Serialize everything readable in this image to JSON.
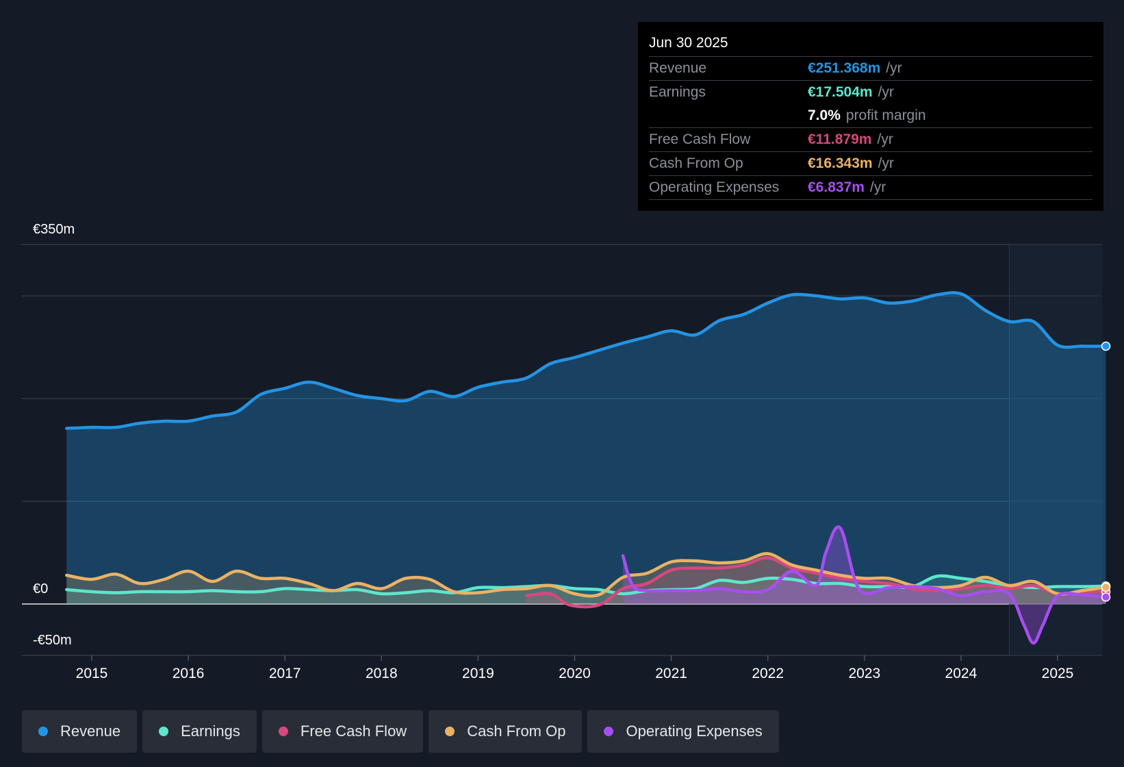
{
  "tooltip": {
    "date": "Jun 30 2025",
    "rows": [
      {
        "label": "Revenue",
        "value": "€251.368m",
        "unit": "/yr",
        "color": "#2394e4"
      },
      {
        "label": "Earnings",
        "value": "€17.504m",
        "unit": "/yr",
        "color": "#5ee6cc"
      },
      {
        "label": "",
        "value": "7.0%",
        "unit": "profit margin",
        "color": "#ffffff"
      },
      {
        "label": "Free Cash Flow",
        "value": "€11.879m",
        "unit": "/yr",
        "color": "#d6487e"
      },
      {
        "label": "Cash From Op",
        "value": "€16.343m",
        "unit": "/yr",
        "color": "#ebb264"
      },
      {
        "label": "Operating Expenses",
        "value": "€6.837m",
        "unit": "/yr",
        "color": "#a64ff0"
      }
    ]
  },
  "legend": [
    {
      "label": "Revenue",
      "color": "#2394e4"
    },
    {
      "label": "Earnings",
      "color": "#5ee6cc"
    },
    {
      "label": "Free Cash Flow",
      "color": "#d6487e"
    },
    {
      "label": "Cash From Op",
      "color": "#ebb264"
    },
    {
      "label": "Operating Expenses",
      "color": "#a64ff0"
    }
  ],
  "chart_data": {
    "type": "line",
    "title": "",
    "xlabel": "",
    "ylabel": "",
    "ylim": [
      -50,
      350
    ],
    "xlim": [
      2014.74,
      2025.5
    ],
    "y_tick_labels": [
      {
        "value": 350,
        "label": "€350m"
      },
      {
        "value": 0,
        "label": "€0"
      },
      {
        "value": -50,
        "label": "-€50m"
      }
    ],
    "gridlines": [
      350,
      300,
      200,
      100,
      0,
      -50
    ],
    "x_ticks": [
      2015,
      2016,
      2017,
      2018,
      2019,
      2020,
      2021,
      2022,
      2023,
      2024,
      2025
    ],
    "x_tick_labels": [
      "2015",
      "2016",
      "2017",
      "2018",
      "2019",
      "2020",
      "2021",
      "2022",
      "2023",
      "2024",
      "2025"
    ],
    "forecast_start": 2024.5,
    "colors": {
      "Revenue": "#2394e4",
      "Earnings": "#5ee6cc",
      "Free Cash Flow": "#d6487e",
      "Cash From Op": "#ebb264",
      "Operating Expenses": "#a64ff0"
    },
    "series": [
      {
        "name": "Revenue",
        "x": [
          2014.74,
          2015.0,
          2015.25,
          2015.5,
          2015.75,
          2016.0,
          2016.25,
          2016.5,
          2016.75,
          2017.0,
          2017.25,
          2017.5,
          2017.75,
          2018.0,
          2018.25,
          2018.5,
          2018.75,
          2019.0,
          2019.25,
          2019.5,
          2019.75,
          2020.0,
          2020.25,
          2020.5,
          2020.75,
          2021.0,
          2021.25,
          2021.5,
          2021.75,
          2022.0,
          2022.25,
          2022.5,
          2022.75,
          2023.0,
          2023.25,
          2023.5,
          2023.75,
          2024.0,
          2024.25,
          2024.5,
          2024.75,
          2025.0,
          2025.25,
          2025.5
        ],
        "values": [
          171,
          172,
          172,
          176,
          178,
          178,
          183,
          187,
          204,
          210,
          216,
          210,
          203,
          200,
          198,
          207,
          202,
          211,
          216,
          220,
          234,
          240,
          247,
          254,
          260,
          266,
          262,
          276,
          282,
          293,
          301,
          300,
          297,
          298,
          293,
          295,
          301,
          302,
          286,
          275,
          275,
          252,
          251,
          251
        ]
      },
      {
        "name": "Earnings",
        "x": [
          2014.74,
          2015.0,
          2015.25,
          2015.5,
          2015.75,
          2016.0,
          2016.25,
          2016.5,
          2016.75,
          2017.0,
          2017.25,
          2017.5,
          2017.75,
          2018.0,
          2018.25,
          2018.5,
          2018.75,
          2019.0,
          2019.25,
          2019.5,
          2019.75,
          2020.0,
          2020.25,
          2020.5,
          2020.75,
          2021.0,
          2021.25,
          2021.5,
          2021.75,
          2022.0,
          2022.25,
          2022.5,
          2022.75,
          2023.0,
          2023.25,
          2023.5,
          2023.75,
          2024.0,
          2024.25,
          2024.5,
          2024.75,
          2025.0,
          2025.25,
          2025.5
        ],
        "values": [
          14,
          12,
          11,
          12,
          12,
          12,
          13,
          12,
          12,
          15,
          14,
          13,
          14,
          10,
          11,
          13,
          11,
          16,
          16,
          17,
          18,
          15,
          14,
          10,
          13,
          14,
          15,
          23,
          21,
          25,
          24,
          20,
          20,
          17,
          17,
          17,
          27,
          25,
          22,
          18,
          16,
          17,
          17,
          17.5
        ]
      },
      {
        "name": "Free Cash Flow",
        "x": [
          2019.5,
          2019.75,
          2019.95,
          2020.25,
          2020.5,
          2020.75,
          2021.0,
          2021.25,
          2021.5,
          2021.75,
          2022.0,
          2022.25,
          2022.5,
          2022.75,
          2023.0,
          2023.25,
          2023.5,
          2023.75,
          2024.0,
          2024.25,
          2024.5,
          2024.75,
          2025.0,
          2025.25,
          2025.5
        ],
        "values": [
          8,
          10,
          -1,
          -1,
          15,
          20,
          33,
          35,
          35,
          38,
          45,
          35,
          30,
          25,
          22,
          20,
          15,
          13,
          15,
          18,
          15,
          18,
          10,
          12,
          11.9
        ]
      },
      {
        "name": "Cash From Op",
        "x": [
          2014.74,
          2015.0,
          2015.25,
          2015.5,
          2015.75,
          2016.0,
          2016.25,
          2016.5,
          2016.75,
          2017.0,
          2017.25,
          2017.5,
          2017.75,
          2018.0,
          2018.25,
          2018.5,
          2018.75,
          2019.0,
          2019.25,
          2019.5,
          2019.75,
          2020.0,
          2020.25,
          2020.5,
          2020.75,
          2021.0,
          2021.25,
          2021.5,
          2021.75,
          2022.0,
          2022.25,
          2022.5,
          2022.75,
          2023.0,
          2023.25,
          2023.5,
          2023.75,
          2024.0,
          2024.25,
          2024.5,
          2024.75,
          2025.0,
          2025.25,
          2025.5
        ],
        "values": [
          28,
          24,
          29,
          20,
          24,
          32,
          22,
          32,
          25,
          25,
          20,
          13,
          20,
          15,
          25,
          24,
          12,
          11,
          14,
          15,
          18,
          10,
          9,
          26,
          30,
          41,
          42,
          40,
          42,
          49,
          38,
          33,
          28,
          25,
          25,
          18,
          16,
          18,
          26,
          18,
          22,
          10,
          13,
          16.3
        ]
      },
      {
        "name": "Operating Expenses",
        "x": [
          2020.5,
          2020.6,
          2020.75,
          2021.0,
          2021.25,
          2021.5,
          2021.75,
          2022.0,
          2022.25,
          2022.5,
          2022.6,
          2022.75,
          2022.95,
          2023.25,
          2023.5,
          2023.75,
          2024.0,
          2024.25,
          2024.5,
          2024.65,
          2024.75,
          2024.85,
          2025.0,
          2025.25,
          2025.5
        ],
        "values": [
          47,
          18,
          13,
          13,
          13,
          15,
          12,
          14,
          32,
          18,
          50,
          74,
          14,
          16,
          17,
          15,
          8,
          12,
          10,
          -20,
          -38,
          -20,
          8,
          9,
          6.8
        ]
      }
    ]
  }
}
